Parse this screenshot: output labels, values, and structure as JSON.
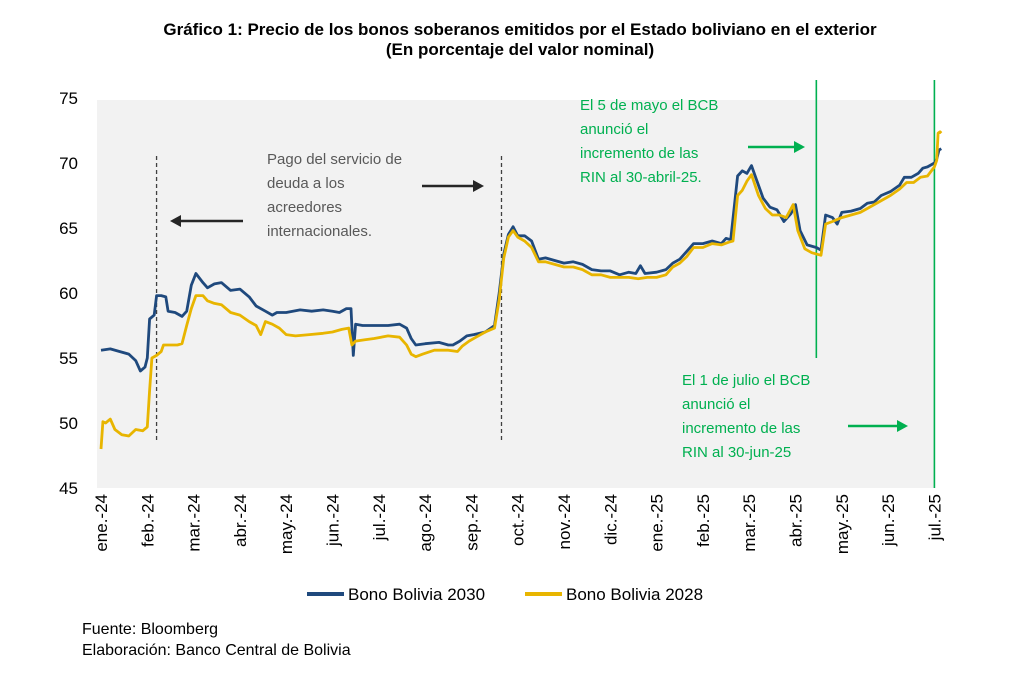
{
  "chart_data": {
    "type": "line",
    "title": "Gráfico 1: Precio de los bonos soberanos emitidos por el Estado boliviano en el exterior",
    "subtitle": "(En porcentaje del valor nominal)",
    "ylim": [
      45,
      75
    ],
    "yticks": [
      "45",
      "50",
      "55",
      "60",
      "65",
      "70",
      "75"
    ],
    "categories": [
      "ene.-24",
      "feb.-24",
      "mar.-24",
      "abr.-24",
      "may.-24",
      "jun.-24",
      "jul.-24",
      "ago.-24",
      "sep.-24",
      "oct.-24",
      "nov.-24",
      "dic.-24",
      "ene.-25",
      "feb.-25",
      "mar.-25",
      "abr.-25",
      "may.-25",
      "jun.-25",
      "jul.-25"
    ],
    "grid": false,
    "legend_position": "bottom",
    "series": [
      {
        "name": "Bono Bolivia 2030",
        "color": "#1F497D",
        "points": [
          [
            0,
            55.6
          ],
          [
            0.2,
            55.7
          ],
          [
            0.4,
            55.5
          ],
          [
            0.6,
            55.3
          ],
          [
            0.75,
            54.8
          ],
          [
            0.85,
            54.0
          ],
          [
            0.95,
            54.3
          ],
          [
            1.0,
            55.0
          ],
          [
            1.05,
            58.0
          ],
          [
            1.15,
            58.3
          ],
          [
            1.2,
            59.8
          ],
          [
            1.3,
            59.8
          ],
          [
            1.4,
            59.7
          ],
          [
            1.45,
            58.6
          ],
          [
            1.6,
            58.5
          ],
          [
            1.75,
            58.2
          ],
          [
            1.85,
            58.6
          ],
          [
            1.95,
            60.6
          ],
          [
            2.05,
            61.5
          ],
          [
            2.2,
            60.8
          ],
          [
            2.3,
            60.4
          ],
          [
            2.45,
            60.7
          ],
          [
            2.6,
            60.8
          ],
          [
            2.8,
            60.2
          ],
          [
            3.0,
            60.3
          ],
          [
            3.2,
            59.7
          ],
          [
            3.35,
            59.0
          ],
          [
            3.55,
            58.6
          ],
          [
            3.7,
            58.3
          ],
          [
            3.8,
            58.5
          ],
          [
            4.0,
            58.5
          ],
          [
            4.3,
            58.7
          ],
          [
            4.55,
            58.6
          ],
          [
            4.8,
            58.7
          ],
          [
            5.0,
            58.6
          ],
          [
            5.15,
            58.5
          ],
          [
            5.3,
            58.8
          ],
          [
            5.4,
            58.8
          ],
          [
            5.45,
            55.2
          ],
          [
            5.5,
            57.6
          ],
          [
            5.65,
            57.5
          ],
          [
            5.9,
            57.5
          ],
          [
            6.2,
            57.5
          ],
          [
            6.45,
            57.6
          ],
          [
            6.6,
            57.3
          ],
          [
            6.7,
            56.5
          ],
          [
            6.8,
            56.0
          ],
          [
            7.0,
            56.1
          ],
          [
            7.3,
            56.2
          ],
          [
            7.5,
            56.0
          ],
          [
            7.6,
            56.0
          ],
          [
            7.75,
            56.3
          ],
          [
            7.9,
            56.7
          ],
          [
            8.05,
            56.8
          ],
          [
            8.3,
            57.0
          ],
          [
            8.5,
            57.5
          ],
          [
            8.6,
            60.0
          ],
          [
            8.7,
            63.0
          ],
          [
            8.8,
            64.5
          ],
          [
            8.9,
            65.1
          ],
          [
            9.0,
            64.4
          ],
          [
            9.15,
            64.4
          ],
          [
            9.3,
            64.0
          ],
          [
            9.45,
            62.6
          ],
          [
            9.6,
            62.7
          ],
          [
            9.8,
            62.5
          ],
          [
            10.0,
            62.3
          ],
          [
            10.2,
            62.4
          ],
          [
            10.4,
            62.2
          ],
          [
            10.6,
            61.8
          ],
          [
            10.8,
            61.7
          ],
          [
            11.0,
            61.7
          ],
          [
            11.2,
            61.4
          ],
          [
            11.4,
            61.6
          ],
          [
            11.55,
            61.5
          ],
          [
            11.65,
            62.1
          ],
          [
            11.75,
            61.5
          ],
          [
            12.0,
            61.6
          ],
          [
            12.2,
            61.8
          ],
          [
            12.35,
            62.3
          ],
          [
            12.5,
            62.6
          ],
          [
            12.65,
            63.2
          ],
          [
            12.8,
            63.8
          ],
          [
            13.0,
            63.8
          ],
          [
            13.2,
            64.0
          ],
          [
            13.4,
            63.8
          ],
          [
            13.5,
            64.2
          ],
          [
            13.6,
            64.1
          ],
          [
            13.75,
            69.0
          ],
          [
            13.85,
            69.4
          ],
          [
            13.95,
            69.2
          ],
          [
            14.05,
            69.8
          ],
          [
            14.15,
            68.8
          ],
          [
            14.3,
            67.3
          ],
          [
            14.45,
            66.6
          ],
          [
            14.6,
            66.4
          ],
          [
            14.75,
            65.5
          ],
          [
            14.9,
            66.1
          ],
          [
            15.0,
            66.8
          ],
          [
            15.1,
            64.8
          ],
          [
            15.25,
            63.7
          ],
          [
            15.45,
            63.5
          ],
          [
            15.55,
            63.3
          ],
          [
            15.65,
            66.0
          ],
          [
            15.8,
            65.8
          ],
          [
            15.9,
            65.3
          ],
          [
            16.0,
            66.2
          ],
          [
            16.2,
            66.3
          ],
          [
            16.4,
            66.5
          ],
          [
            16.55,
            66.9
          ],
          [
            16.7,
            67.0
          ],
          [
            16.85,
            67.5
          ],
          [
            17.05,
            67.8
          ],
          [
            17.25,
            68.3
          ],
          [
            17.35,
            68.9
          ],
          [
            17.5,
            68.9
          ],
          [
            17.65,
            69.2
          ],
          [
            17.75,
            69.6
          ],
          [
            17.85,
            69.7
          ],
          [
            18.0,
            70.0
          ],
          [
            18.05,
            70.3
          ],
          [
            18.1,
            71.0
          ],
          [
            18.15,
            71.1
          ]
        ]
      },
      {
        "name": "Bono Bolivia 2028",
        "color": "#E8B500",
        "points": [
          [
            0,
            48.0
          ],
          [
            0.04,
            50.1
          ],
          [
            0.1,
            50.0
          ],
          [
            0.2,
            50.3
          ],
          [
            0.3,
            49.5
          ],
          [
            0.45,
            49.1
          ],
          [
            0.6,
            49.0
          ],
          [
            0.75,
            49.5
          ],
          [
            0.9,
            49.4
          ],
          [
            1.0,
            49.7
          ],
          [
            1.05,
            52.5
          ],
          [
            1.1,
            55.0
          ],
          [
            1.2,
            55.2
          ],
          [
            1.3,
            55.5
          ],
          [
            1.35,
            56.0
          ],
          [
            1.5,
            56.0
          ],
          [
            1.65,
            56.0
          ],
          [
            1.75,
            56.1
          ],
          [
            1.85,
            57.5
          ],
          [
            1.95,
            58.8
          ],
          [
            2.05,
            59.8
          ],
          [
            2.2,
            59.8
          ],
          [
            2.3,
            59.4
          ],
          [
            2.45,
            59.2
          ],
          [
            2.6,
            59.1
          ],
          [
            2.8,
            58.5
          ],
          [
            3.0,
            58.3
          ],
          [
            3.2,
            57.8
          ],
          [
            3.35,
            57.5
          ],
          [
            3.45,
            56.8
          ],
          [
            3.55,
            57.8
          ],
          [
            3.7,
            57.6
          ],
          [
            3.85,
            57.3
          ],
          [
            4.0,
            56.8
          ],
          [
            4.2,
            56.7
          ],
          [
            4.5,
            56.8
          ],
          [
            4.8,
            56.9
          ],
          [
            5.0,
            57.0
          ],
          [
            5.2,
            57.2
          ],
          [
            5.35,
            57.3
          ],
          [
            5.42,
            56.0
          ],
          [
            5.5,
            56.3
          ],
          [
            5.7,
            56.4
          ],
          [
            5.9,
            56.5
          ],
          [
            6.2,
            56.7
          ],
          [
            6.45,
            56.6
          ],
          [
            6.6,
            56.0
          ],
          [
            6.7,
            55.3
          ],
          [
            6.8,
            55.1
          ],
          [
            6.95,
            55.3
          ],
          [
            7.2,
            55.6
          ],
          [
            7.5,
            55.6
          ],
          [
            7.7,
            55.5
          ],
          [
            7.8,
            55.9
          ],
          [
            7.95,
            56.3
          ],
          [
            8.1,
            56.6
          ],
          [
            8.3,
            57.0
          ],
          [
            8.5,
            57.3
          ],
          [
            8.6,
            59.5
          ],
          [
            8.7,
            62.7
          ],
          [
            8.8,
            64.3
          ],
          [
            8.9,
            64.8
          ],
          [
            9.0,
            64.3
          ],
          [
            9.15,
            64.0
          ],
          [
            9.3,
            63.5
          ],
          [
            9.45,
            62.4
          ],
          [
            9.6,
            62.4
          ],
          [
            9.8,
            62.2
          ],
          [
            10.0,
            62.0
          ],
          [
            10.2,
            62.0
          ],
          [
            10.4,
            61.8
          ],
          [
            10.6,
            61.4
          ],
          [
            10.8,
            61.4
          ],
          [
            11.0,
            61.2
          ],
          [
            11.2,
            61.2
          ],
          [
            11.4,
            61.2
          ],
          [
            11.6,
            61.1
          ],
          [
            11.8,
            61.2
          ],
          [
            12.0,
            61.2
          ],
          [
            12.2,
            61.4
          ],
          [
            12.35,
            62.0
          ],
          [
            12.5,
            62.3
          ],
          [
            12.65,
            62.8
          ],
          [
            12.8,
            63.5
          ],
          [
            13.0,
            63.5
          ],
          [
            13.2,
            63.8
          ],
          [
            13.4,
            63.7
          ],
          [
            13.55,
            63.9
          ],
          [
            13.65,
            64.0
          ],
          [
            13.75,
            67.5
          ],
          [
            13.85,
            67.9
          ],
          [
            13.95,
            68.6
          ],
          [
            14.05,
            69.1
          ],
          [
            14.2,
            67.5
          ],
          [
            14.35,
            66.5
          ],
          [
            14.5,
            66.0
          ],
          [
            14.65,
            66.0
          ],
          [
            14.8,
            65.8
          ],
          [
            14.95,
            66.8
          ],
          [
            15.05,
            64.8
          ],
          [
            15.2,
            63.4
          ],
          [
            15.35,
            63.1
          ],
          [
            15.55,
            62.9
          ],
          [
            15.65,
            65.3
          ],
          [
            15.8,
            65.5
          ],
          [
            16.0,
            65.8
          ],
          [
            16.2,
            66.0
          ],
          [
            16.4,
            66.2
          ],
          [
            16.55,
            66.5
          ],
          [
            16.7,
            66.8
          ],
          [
            16.9,
            67.2
          ],
          [
            17.05,
            67.5
          ],
          [
            17.25,
            68.0
          ],
          [
            17.4,
            68.5
          ],
          [
            17.55,
            68.5
          ],
          [
            17.7,
            68.9
          ],
          [
            17.85,
            69.0
          ],
          [
            18.0,
            69.7
          ],
          [
            18.05,
            70.2
          ],
          [
            18.08,
            72.3
          ],
          [
            18.12,
            72.4
          ],
          [
            18.15,
            72.3
          ]
        ]
      }
    ],
    "reference_lines": [
      {
        "style": "dashed",
        "color": "#404040",
        "x": 1.2
      },
      {
        "style": "dashed",
        "color": "#404040",
        "x": 8.65
      },
      {
        "style": "solid",
        "color": "#00B050",
        "x": 15.45
      },
      {
        "style": "solid",
        "color": "#00B050",
        "x": 18.0
      }
    ],
    "annotations": [
      {
        "lines": [
          "Pago del servicio de",
          "deuda a los",
          "acreedores",
          "internacionales."
        ],
        "color": "#595959"
      },
      {
        "lines": [
          "El 5 de mayo el BCB",
          "anunció el",
          "incremento de las",
          "RIN al 30-abril-25."
        ],
        "color": "#00B050"
      },
      {
        "lines": [
          "El 1 de julio el BCB",
          "anunció el",
          "incremento de las",
          "RIN al 30-jun-25"
        ],
        "color": "#00B050"
      }
    ]
  },
  "footer": {
    "source": "Fuente: Bloomberg",
    "author": "Elaboración: Banco Central de Bolivia"
  }
}
